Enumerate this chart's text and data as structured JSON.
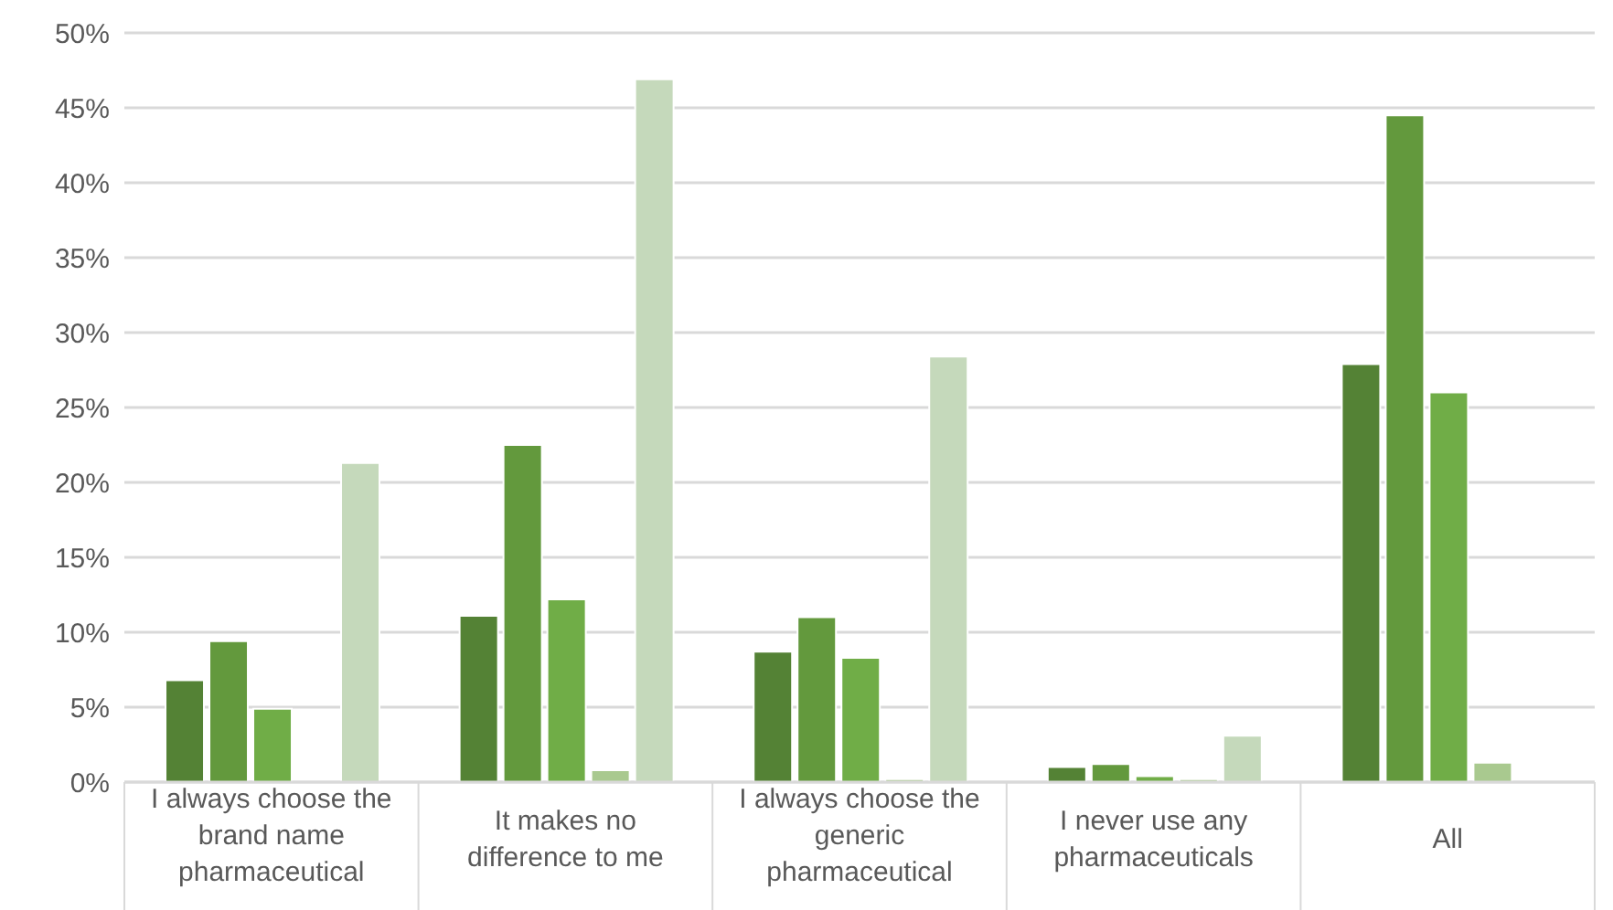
{
  "chart_data": {
    "type": "bar",
    "categories": [
      "I always choose the brand name pharmaceutical",
      "It makes no difference to me",
      "I always choose the generic pharmaceutical",
      "I never use any pharmaceuticals",
      "All"
    ],
    "series": [
      {
        "color": "#548235",
        "values": [
          6.8,
          11.1,
          8.7,
          1.0,
          27.9
        ]
      },
      {
        "color": "#63993d",
        "values": [
          9.4,
          22.5,
          11.0,
          1.2,
          44.5
        ]
      },
      {
        "color": "#70ad47",
        "values": [
          4.9,
          12.2,
          8.3,
          0.4,
          26.0
        ]
      },
      {
        "color": "#a9c98f",
        "values": [
          0,
          0.8,
          0.2,
          0.2,
          1.3
        ]
      },
      {
        "color": "#c5d9bb",
        "values": [
          21.3,
          46.9,
          28.4,
          3.1,
          0
        ]
      }
    ],
    "ylim": [
      0,
      50
    ],
    "yticks": [
      {
        "value": 0,
        "label": "0%"
      },
      {
        "value": 5,
        "label": "5%"
      },
      {
        "value": 10,
        "label": "10%"
      },
      {
        "value": 15,
        "label": "15%"
      },
      {
        "value": 20,
        "label": "20%"
      },
      {
        "value": 25,
        "label": "25%"
      },
      {
        "value": 30,
        "label": "30%"
      },
      {
        "value": 35,
        "label": "35%"
      },
      {
        "value": 40,
        "label": "40%"
      },
      {
        "value": 45,
        "label": "45%"
      },
      {
        "value": 50,
        "label": "50%"
      }
    ],
    "grid": "y",
    "legend": false
  }
}
